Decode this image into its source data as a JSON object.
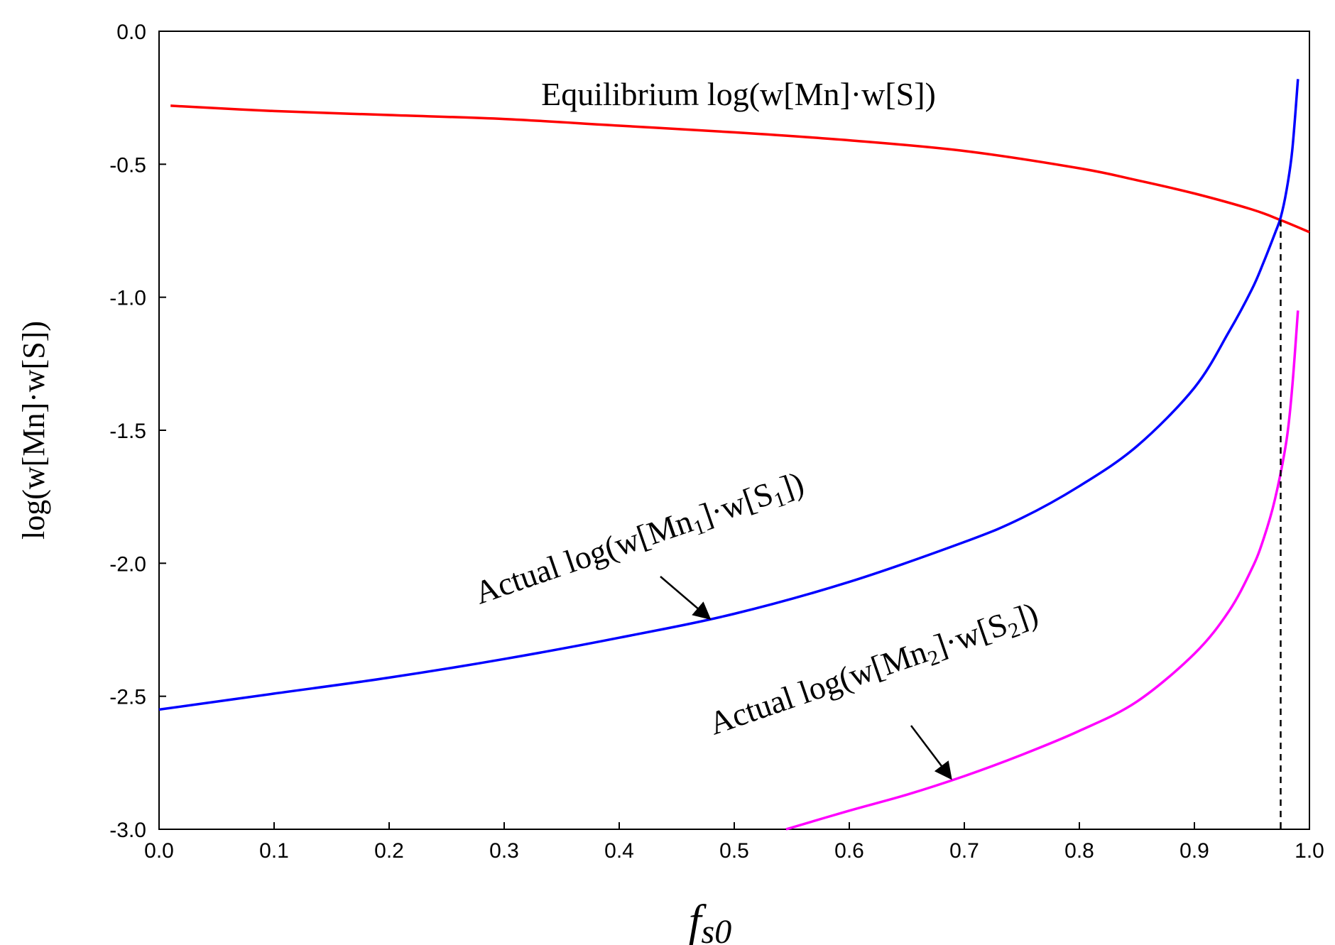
{
  "chart_data": {
    "type": "line",
    "title": "",
    "xlabel": "f",
    "xlabel_sub": "s0",
    "ylabel": "log(w[Mn]·w[S])",
    "xlim": [
      0.0,
      1.0
    ],
    "ylim": [
      -3.0,
      0.0
    ],
    "xticks": [
      "0.0",
      "0.1",
      "0.2",
      "0.3",
      "0.4",
      "0.5",
      "0.6",
      "0.7",
      "0.8",
      "0.9",
      "1.0"
    ],
    "yticks": [
      "0.0",
      "-0.5",
      "-1.0",
      "-1.5",
      "-2.0",
      "-2.5",
      "-3.0"
    ],
    "grid": false,
    "vertical_reference_line": {
      "x": 0.975,
      "style": "dashed",
      "color": "#000000"
    },
    "series": [
      {
        "name": "Equilibrium log(w[Mn]·w[S])",
        "color": "#ff0000",
        "x": [
          0.01,
          0.1,
          0.2,
          0.3,
          0.4,
          0.5,
          0.6,
          0.7,
          0.8,
          0.85,
          0.9,
          0.95,
          0.975,
          1.0
        ],
        "y": [
          -0.28,
          -0.3,
          -0.315,
          -0.33,
          -0.355,
          -0.38,
          -0.41,
          -0.45,
          -0.515,
          -0.56,
          -0.61,
          -0.67,
          -0.71,
          -0.755
        ]
      },
      {
        "name": "Actual log(w[Mn1]·w[S1])",
        "color": "#0000ff",
        "x": [
          0.0,
          0.1,
          0.2,
          0.3,
          0.4,
          0.5,
          0.6,
          0.7,
          0.75,
          0.8,
          0.85,
          0.9,
          0.93,
          0.95,
          0.96,
          0.97,
          0.975,
          0.98,
          0.985,
          0.99
        ],
        "y": [
          -2.55,
          -2.49,
          -2.43,
          -2.36,
          -2.28,
          -2.19,
          -2.07,
          -1.92,
          -1.83,
          -1.71,
          -1.56,
          -1.34,
          -1.13,
          -0.97,
          -0.87,
          -0.76,
          -0.7,
          -0.6,
          -0.45,
          -0.18
        ]
      },
      {
        "name": "Actual log(w[Mn2]·w[S2])",
        "color": "#ff00ff",
        "x": [
          0.545,
          0.6,
          0.65,
          0.7,
          0.75,
          0.8,
          0.85,
          0.9,
          0.93,
          0.95,
          0.96,
          0.97,
          0.98,
          0.985,
          0.99
        ],
        "y": [
          -3.0,
          -2.93,
          -2.87,
          -2.8,
          -2.72,
          -2.63,
          -2.52,
          -2.34,
          -2.18,
          -2.02,
          -1.91,
          -1.76,
          -1.54,
          -1.34,
          -1.05
        ]
      }
    ],
    "annotations": [
      {
        "text": "Equilibrium  log(w[Mn]·w[S])",
        "target_series": 0,
        "arrow": false
      },
      {
        "text_pre": "Actual log(w[Mn",
        "sub1": "1",
        "text_mid": "]·w[S",
        "sub2": "1",
        "text_post": "])",
        "target_series": 1,
        "arrow_to": {
          "x": 0.48,
          "y": -2.22
        }
      },
      {
        "text_pre": "Actual log(w[Mn",
        "sub1": "2",
        "text_mid": "]·w[S",
        "sub2": "2",
        "text_post": "])",
        "target_series": 2,
        "arrow_to": {
          "x": 0.69,
          "y": -2.82
        }
      }
    ]
  }
}
